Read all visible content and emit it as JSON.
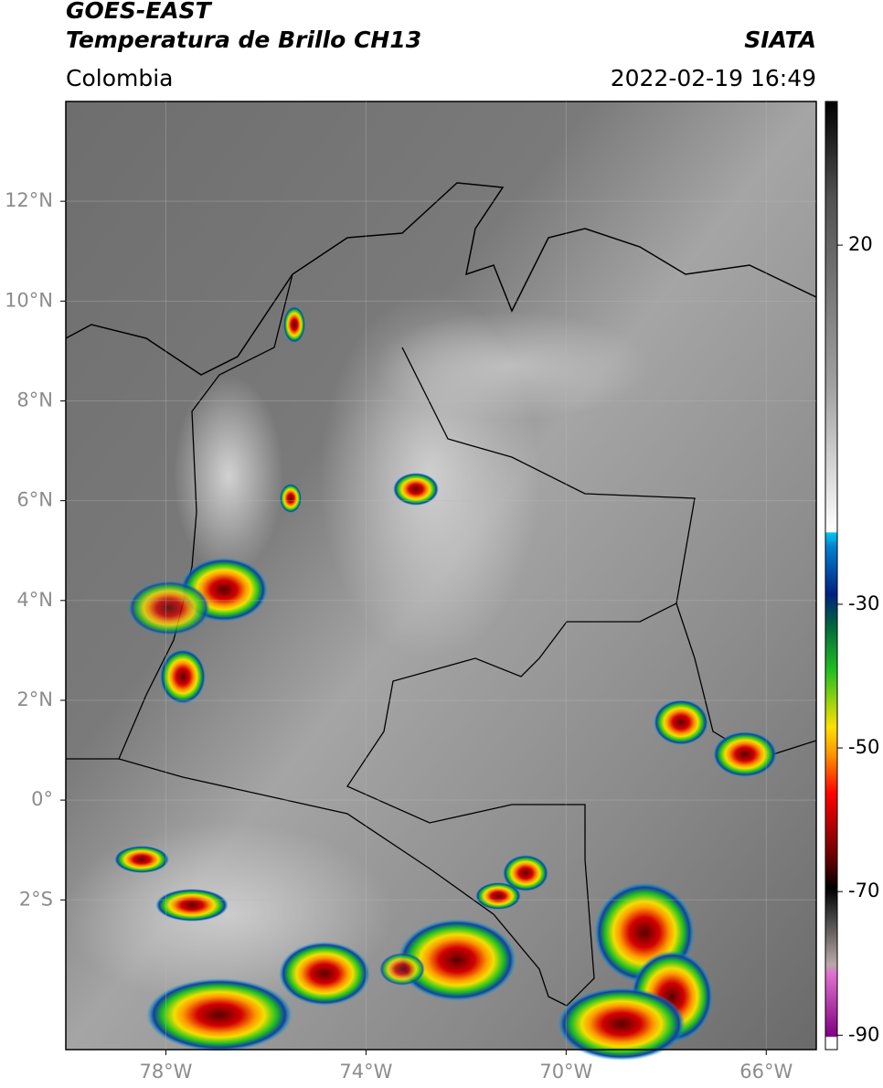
{
  "header": {
    "satellite": "GOES-EAST",
    "product": "Temperatura de Brillo CH13",
    "region": "Colombia",
    "source": "SIATA",
    "datetime": "2022-02-19 16:49"
  },
  "map": {
    "xlim": [
      -80,
      -65
    ],
    "ylim": [
      -5,
      14
    ],
    "lon_ticks": [
      {
        "value": -78,
        "label": "78°W"
      },
      {
        "value": -74,
        "label": "74°W"
      },
      {
        "value": -70,
        "label": "70°W"
      },
      {
        "value": -66,
        "label": "66°W"
      }
    ],
    "lat_ticks": [
      {
        "value": 12,
        "label": "12°N"
      },
      {
        "value": 10,
        "label": "10°N"
      },
      {
        "value": 8,
        "label": "8°N"
      },
      {
        "value": 6,
        "label": "6°N"
      },
      {
        "value": 4,
        "label": "4°N"
      },
      {
        "value": 2,
        "label": "2°N"
      },
      {
        "value": 0,
        "label": "0°"
      },
      {
        "value": -2,
        "label": "2°S"
      }
    ]
  },
  "colorbar": {
    "lim": [
      -92,
      40
    ],
    "ticks": [
      20,
      -30,
      -50,
      -70,
      -90
    ]
  }
}
